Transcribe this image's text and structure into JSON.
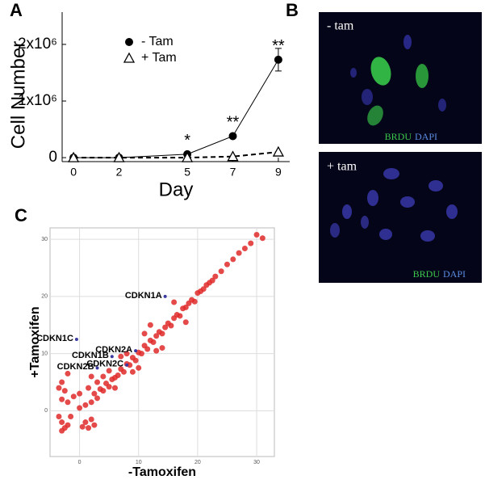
{
  "figure": {
    "panel_labels": [
      "A",
      "B",
      "C"
    ],
    "images": [
      {
        "label": "- tam",
        "stain1": "BRDU",
        "stain2": "DAPI"
      },
      {
        "label": "+ tam",
        "stain1": "BRDU",
        "stain2": "DAPI"
      }
    ]
  },
  "chart_data": [
    {
      "type": "line",
      "ylabel": "Cell Number",
      "xlabel": "Day",
      "x": [
        0,
        2,
        5,
        7,
        9
      ],
      "series": [
        {
          "name": "- Tam",
          "color": "#000000",
          "marker": "circle",
          "dashed": false,
          "values": [
            0,
            0,
            60000,
            380000,
            1730000
          ],
          "errors": [
            null,
            null,
            null,
            null,
            200000
          ]
        },
        {
          "name": "+ Tam",
          "color": "#000000",
          "marker": "triangle",
          "dashed": true,
          "values": [
            0,
            0,
            0,
            20000,
            100000
          ]
        }
      ],
      "annotations": [
        {
          "text": "*",
          "x": 5
        },
        {
          "text": "**",
          "x": 7
        },
        {
          "text": "**",
          "x": 9
        }
      ],
      "xlim": [
        -0.5,
        9.5
      ],
      "ylim": [
        -70000,
        2570000
      ],
      "xticks": [
        0,
        2,
        5,
        7,
        9
      ],
      "yticks": [
        0,
        {
          "value": 1000000,
          "label": "1x10⁶"
        },
        {
          "value": 2000000,
          "label": "2x10⁶"
        }
      ]
    },
    {
      "type": "scatter",
      "xlabel": "-Tamoxifen",
      "ylabel": "+Tamoxifen",
      "color": "#e02a2a",
      "grid": true,
      "xlim": [
        -5,
        33
      ],
      "ylim": [
        -8,
        32
      ],
      "xticks": [
        0,
        10,
        20,
        30
      ],
      "yticks": [
        0,
        10,
        20,
        30
      ],
      "x": [
        2,
        2.5,
        3,
        3.5,
        4,
        4.5,
        5,
        5.5,
        6,
        6.5,
        7,
        7.5,
        8,
        8.5,
        9,
        9.5,
        10,
        10.5,
        11,
        11.5,
        12,
        12.5,
        13,
        13.5,
        14,
        14.5,
        15,
        15.5,
        16,
        16.5,
        17,
        17.5,
        18,
        18.5,
        19,
        19.5,
        20,
        20.5,
        21,
        21.5,
        22,
        22.5,
        23,
        24,
        25,
        26,
        27,
        28,
        29,
        30,
        31,
        4,
        6,
        8,
        10,
        12,
        14,
        16,
        18,
        7,
        9,
        11,
        13,
        -3,
        -2.5,
        -3.5,
        -2,
        -3,
        1,
        1.5,
        2,
        0.5,
        2.5,
        -3,
        -2.5,
        -3.5,
        -2,
        -3,
        -1.5,
        0,
        1,
        -1,
        0,
        1.5,
        2,
        3,
        5,
        -2
      ],
      "y": [
        1.5,
        3,
        2.2,
        3.8,
        3.5,
        4.8,
        4.2,
        5.5,
        5.8,
        6.2,
        7.3,
        6.8,
        8.2,
        8,
        9.3,
        8.8,
        10.2,
        10,
        11.4,
        10.8,
        12.3,
        12,
        13.1,
        13.8,
        13.5,
        14.6,
        15.3,
        14.9,
        16.2,
        16.8,
        16.6,
        17.9,
        18.1,
        18.8,
        19.4,
        19.1,
        20.6,
        20.9,
        21.3,
        22,
        22.4,
        22.8,
        23.5,
        24.4,
        25.6,
        26.5,
        27.6,
        28.4,
        29.3,
        30.8,
        30.2,
        6,
        4,
        10,
        7.5,
        15,
        11,
        19,
        15.5,
        9.5,
        6.8,
        13.5,
        10.5,
        -2,
        -3,
        -1,
        -2.5,
        -3.5,
        -2,
        -3,
        -1.5,
        -2.8,
        -2.5,
        2,
        3.5,
        4,
        1.5,
        5,
        -1,
        0.5,
        1,
        2.5,
        3,
        4,
        6,
        5,
        7,
        6.5
      ],
      "annotations": [
        {
          "text": "CDKN1A",
          "x": 14.5,
          "y": 20
        },
        {
          "text": "CDKN1C",
          "x": -0.5,
          "y": 12.5
        },
        {
          "text": "CDKN1B",
          "x": 5.5,
          "y": 9.5
        },
        {
          "text": "CDKN2A",
          "x": 9.5,
          "y": 10.5
        },
        {
          "text": "CDKN2B",
          "x": 3,
          "y": 7.5
        },
        {
          "text": "CDKN2C",
          "x": 8,
          "y": 8
        }
      ]
    }
  ]
}
